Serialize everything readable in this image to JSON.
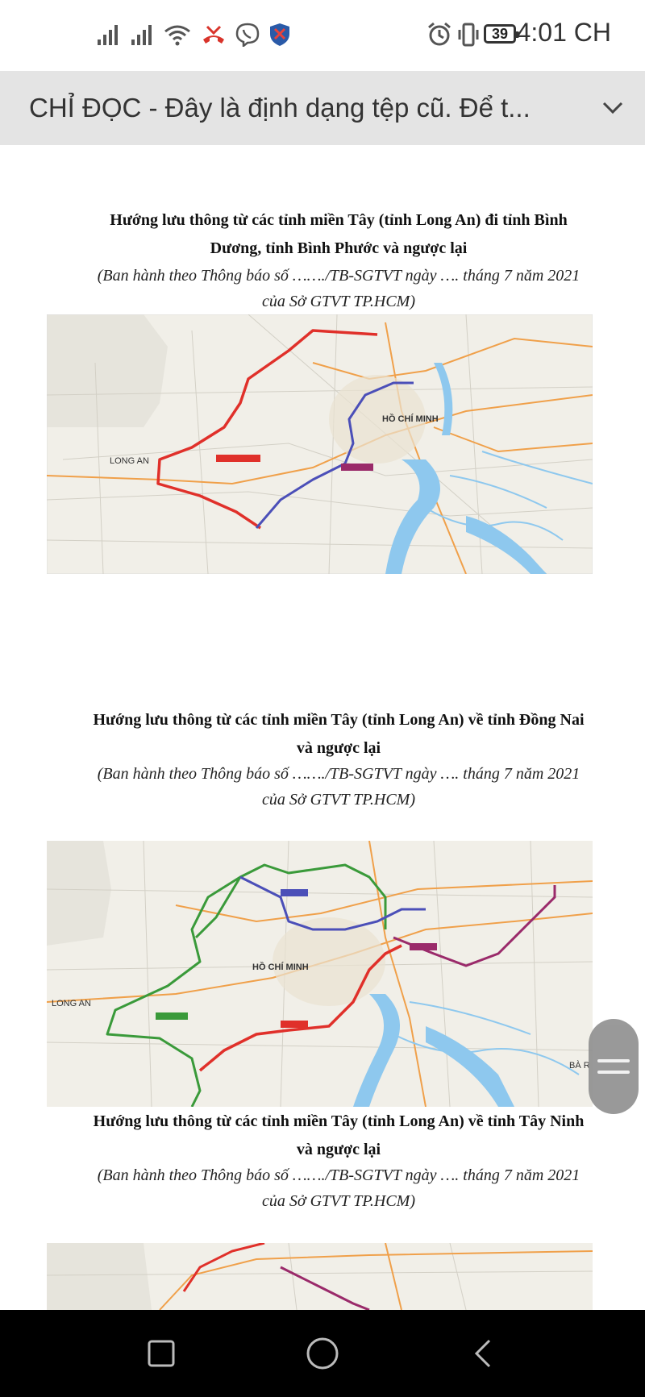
{
  "status_bar": {
    "time": "4:01 CH",
    "battery": "39",
    "icons": [
      "signal-icon",
      "signal-icon-2",
      "wifi-icon",
      "missed-call-icon",
      "viber-icon",
      "shield-icon",
      "alarm-icon",
      "vibrate-icon",
      "battery-icon"
    ]
  },
  "toolbar": {
    "title": "CHỈ ĐỌC - Đây là định dạng tệp cũ. Để t...",
    "expand_icon": "chevron-down-icon"
  },
  "sections": [
    {
      "title_line1": "Hướng lưu thông từ các tỉnh miền Tây (tỉnh Long An) đi tỉnh Bình",
      "title_line2": "Dương, tỉnh Bình Phước và ngược lại",
      "sub_line1": "(Ban hành theo Thông báo số ……./TB-SGTVT ngày …. tháng 7 năm 2021",
      "sub_line2": "của Sở GTVT TP.HCM)",
      "map_labels": [
        "HỒ CHÍ MINH",
        "LONG AN"
      ]
    },
    {
      "title_line1": "Hướng lưu thông từ các tỉnh miền Tây (tỉnh Long An) về tỉnh Đồng Nai",
      "title_line2": "và ngược lại",
      "sub_line1": "(Ban hành theo Thông báo số ……./TB-SGTVT ngày …. tháng 7 năm 2021",
      "sub_line2": "của Sở GTVT TP.HCM)",
      "map_labels": [
        "HỒ CHÍ MINH",
        "LONG AN",
        "BÀ R"
      ]
    },
    {
      "title_line1": "Hướng lưu thông từ các tỉnh miền Tây (tỉnh Long An) về tỉnh Tây Ninh",
      "title_line2": "và ngược lại",
      "sub_line1": "(Ban hành theo Thông báo số ……./TB-SGTVT ngày …. tháng 7 năm 2021",
      "sub_line2": "của Sở GTVT TP.HCM)"
    }
  ],
  "colors": {
    "toolbar_bg": "#e4e4e4",
    "route_red": "#e0302a",
    "route_blue": "#4b4fb8",
    "route_green": "#3a9a3a",
    "route_purple": "#9a2a6a",
    "water": "#8ec8ee"
  },
  "nav_bar": {
    "icons": [
      "recent-apps-icon",
      "home-icon",
      "back-icon"
    ]
  }
}
